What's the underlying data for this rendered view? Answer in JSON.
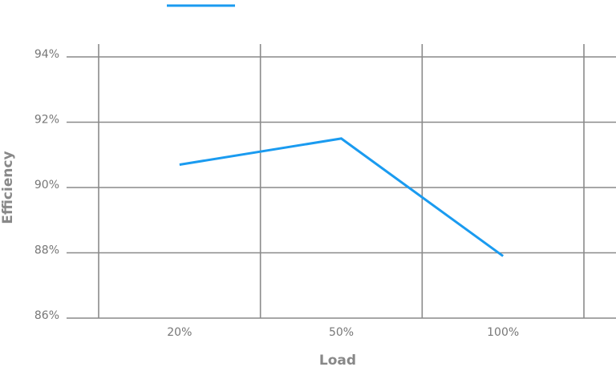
{
  "chart_data": {
    "type": "line",
    "categories": [
      "20%",
      "50%",
      "100%"
    ],
    "series": [
      {
        "color": "#1a9bf0",
        "values": [
          90.7,
          91.5,
          87.9
        ]
      }
    ],
    "ylim": [
      86,
      94
    ],
    "yticks": [
      {
        "value": 86,
        "label": "86%"
      },
      {
        "value": 88,
        "label": "88%"
      },
      {
        "value": 90,
        "label": "90%"
      },
      {
        "value": 92,
        "label": "92%"
      },
      {
        "value": 94,
        "label": "94%"
      }
    ],
    "x_label": "Load",
    "y_label": "Efficiency",
    "grid": true
  }
}
